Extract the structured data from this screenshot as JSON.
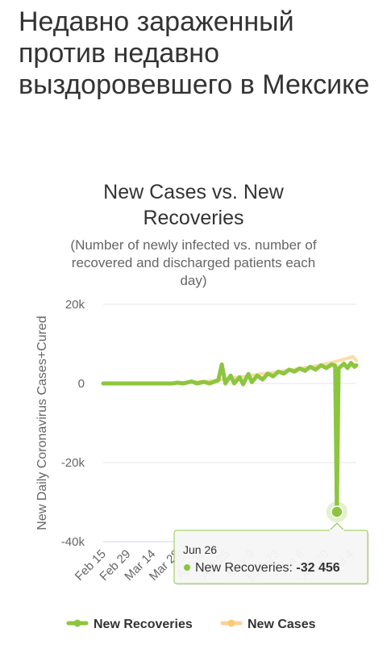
{
  "page": {
    "heading": "Недавно зараженный против недавно выздоровевшего в Мексике"
  },
  "chart_data": {
    "type": "line",
    "title": "New Cases vs. New Recoveries",
    "title_lines": [
      "New Cases vs. New",
      "Recoveries"
    ],
    "subtitle": "(Number of newly infected vs. number of recovered and discharged patients each day)",
    "subtitle_lines": [
      "(Number of newly infected vs. number of",
      "recovered and discharged patients each",
      "day)"
    ],
    "ylabel": "New Daily Coronavirus Cases+Cured",
    "xlabel": "",
    "ylim": [
      -40000,
      20000
    ],
    "yticks": [
      20000,
      0,
      -20000,
      -40000
    ],
    "ytick_labels": [
      "20k",
      "0",
      "-20k",
      "-40k"
    ],
    "xticks": [
      "Feb 15",
      "Feb 29",
      "Mar 14",
      "Mar 28",
      "Apr 11",
      "Apr 25",
      "May 9",
      "May 23",
      "Jun 6",
      "Jun 20",
      "Jul 4"
    ],
    "x_start": "2020-02-15",
    "x_end": "2020-07-07",
    "grid": true,
    "legend_position": "bottom",
    "series": [
      {
        "name": "New Recoveries",
        "color": "#8cc63f",
        "points": [
          [
            "2020-02-15",
            0
          ],
          [
            "2020-03-15",
            0
          ],
          [
            "2020-03-25",
            0
          ],
          [
            "2020-03-28",
            200
          ],
          [
            "2020-03-31",
            0
          ],
          [
            "2020-04-05",
            500
          ],
          [
            "2020-04-08",
            0
          ],
          [
            "2020-04-12",
            400
          ],
          [
            "2020-04-15",
            0
          ],
          [
            "2020-04-20",
            800
          ],
          [
            "2020-04-22",
            4800
          ],
          [
            "2020-04-24",
            0
          ],
          [
            "2020-04-27",
            2000
          ],
          [
            "2020-04-29",
            0
          ],
          [
            "2020-05-02",
            1600
          ],
          [
            "2020-05-04",
            -200
          ],
          [
            "2020-05-07",
            2400
          ],
          [
            "2020-05-09",
            300
          ],
          [
            "2020-05-12",
            2000
          ],
          [
            "2020-05-15",
            1000
          ],
          [
            "2020-05-18",
            2500
          ],
          [
            "2020-05-21",
            1800
          ],
          [
            "2020-05-24",
            3000
          ],
          [
            "2020-05-27",
            2500
          ],
          [
            "2020-05-30",
            3500
          ],
          [
            "2020-06-02",
            3000
          ],
          [
            "2020-06-05",
            3800
          ],
          [
            "2020-06-08",
            3200
          ],
          [
            "2020-06-11",
            4200
          ],
          [
            "2020-06-14",
            3500
          ],
          [
            "2020-06-17",
            4600
          ],
          [
            "2020-06-20",
            3900
          ],
          [
            "2020-06-23",
            4800
          ],
          [
            "2020-06-25",
            4500
          ],
          [
            "2020-06-26",
            -32456
          ],
          [
            "2020-06-27",
            3800
          ],
          [
            "2020-06-30",
            5000
          ],
          [
            "2020-07-02",
            3900
          ],
          [
            "2020-07-04",
            5200
          ],
          [
            "2020-07-06",
            4200
          ],
          [
            "2020-07-07",
            4600
          ]
        ]
      },
      {
        "name": "New Cases",
        "color": "#f9c97a",
        "points": [
          [
            "2020-02-15",
            0
          ],
          [
            "2020-03-20",
            0
          ],
          [
            "2020-04-01",
            200
          ],
          [
            "2020-04-15",
            600
          ],
          [
            "2020-04-25",
            1200
          ],
          [
            "2020-05-05",
            1800
          ],
          [
            "2020-05-15",
            2500
          ],
          [
            "2020-05-25",
            3000
          ],
          [
            "2020-06-05",
            3800
          ],
          [
            "2020-06-15",
            4500
          ],
          [
            "2020-06-25",
            5500
          ],
          [
            "2020-07-01",
            6200
          ],
          [
            "2020-07-05",
            6800
          ],
          [
            "2020-07-07",
            5800
          ]
        ]
      }
    ],
    "tooltip": {
      "date": "Jun 26",
      "series": "New Recoveries",
      "label": "New Recoveries: ",
      "value": "-32 456",
      "x": "2020-06-26",
      "y": -32456
    }
  }
}
